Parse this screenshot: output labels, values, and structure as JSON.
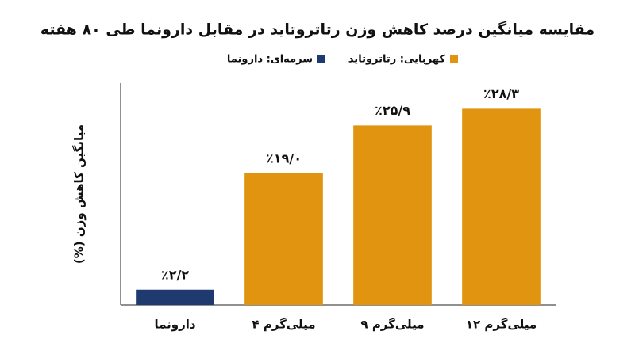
{
  "chart_data": {
    "type": "bar",
    "title": "مقایسه میانگین درصد کاهش وزن رتاتروتاید در مقابل دارونما طی ۸۰ هفته",
    "legend": [
      {
        "label": "سرمه‌ای: دارونما",
        "color": "#1f3a6e"
      },
      {
        "label": "کهربایی: رتاتروتاید",
        "color": "#e0940f"
      }
    ],
    "y_label": "میانگین کاهش وزن (%)",
    "categories": [
      "دارونما",
      "۴ میلی‌گرم",
      "۹ میلی‌گرم",
      "۱۲ میلی‌گرم"
    ],
    "values": [
      2.2,
      19.0,
      25.9,
      28.3
    ],
    "value_labels": [
      "٪۲/۲",
      "٪۱۹/۰",
      "٪۲۵/۹",
      "٪۲۸/۳"
    ],
    "colors": [
      "#1f3a6e",
      "#e0940f",
      "#e0940f",
      "#e0940f"
    ],
    "ylim": [
      0,
      32
    ]
  }
}
